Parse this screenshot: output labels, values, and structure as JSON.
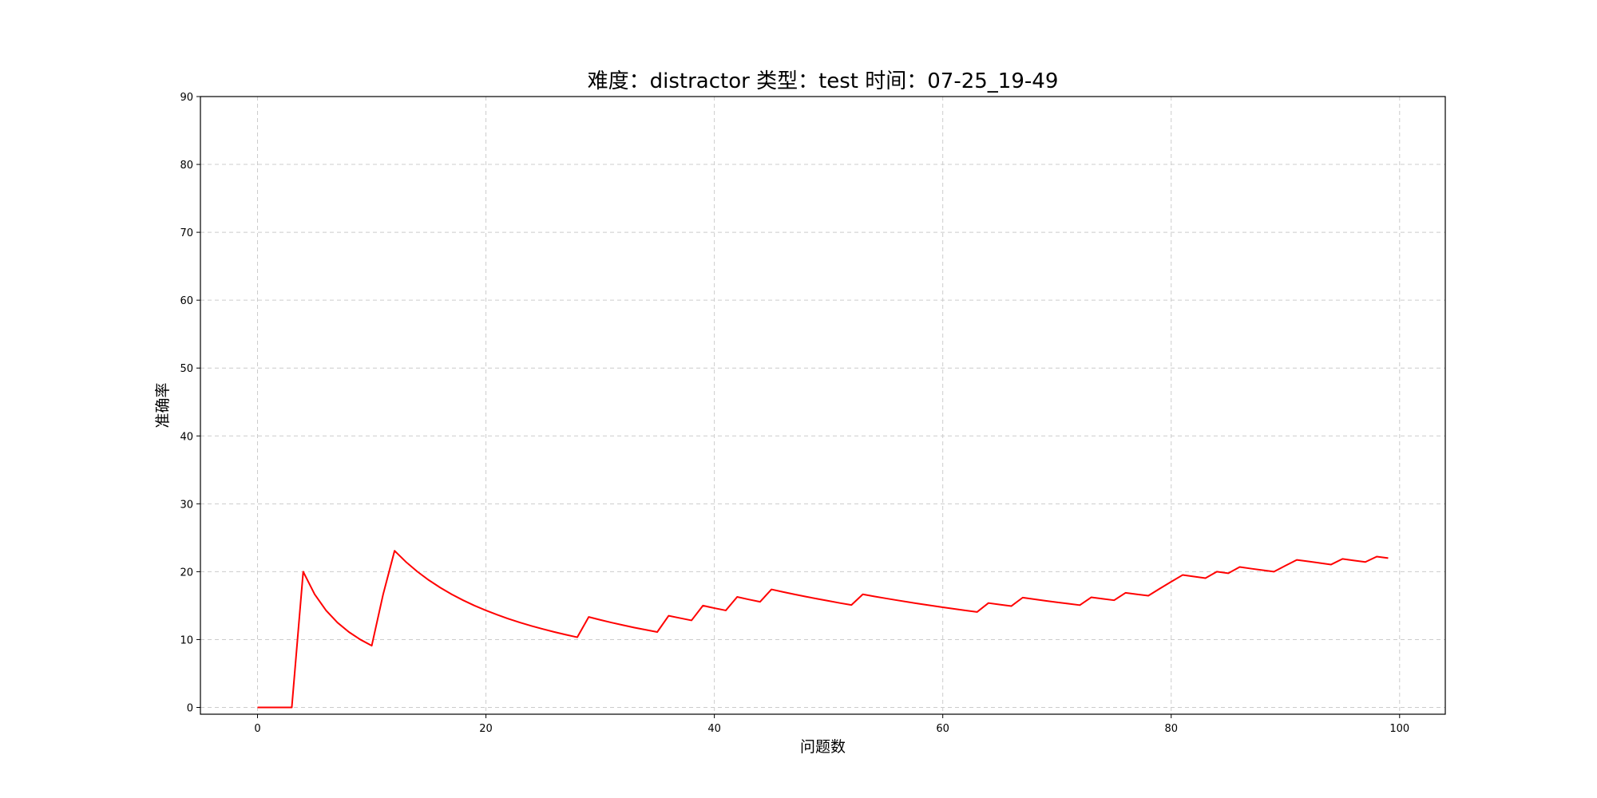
{
  "chart_data": {
    "type": "line",
    "title": "难度：distractor 类型：test 时间：07-25_19-49",
    "xlabel": "问题数",
    "ylabel": "准确率",
    "xlim": [
      -5,
      104
    ],
    "ylim": [
      -1,
      90
    ],
    "xticks": [
      0,
      20,
      40,
      60,
      80,
      100
    ],
    "yticks": [
      0,
      10,
      20,
      30,
      40,
      50,
      60,
      70,
      80,
      90
    ],
    "grid": true,
    "grid_style": "dashed",
    "series": [
      {
        "color": "#ff0000",
        "x": [
          0,
          1,
          2,
          3,
          4,
          5,
          6,
          7,
          8,
          9,
          10,
          11,
          12,
          13,
          14,
          15,
          16,
          17,
          18,
          19,
          20,
          21,
          22,
          23,
          24,
          25,
          26,
          27,
          28,
          29,
          30,
          31,
          32,
          33,
          34,
          35,
          36,
          37,
          38,
          39,
          40,
          41,
          42,
          43,
          44,
          45,
          46,
          47,
          48,
          49,
          50,
          51,
          52,
          53,
          54,
          55,
          56,
          57,
          58,
          59,
          60,
          61,
          62,
          63,
          64,
          65,
          66,
          67,
          68,
          69,
          70,
          71,
          72,
          73,
          74,
          75,
          76,
          77,
          78,
          79,
          80,
          81,
          82,
          83,
          84,
          85,
          86,
          87,
          88,
          89,
          90,
          91,
          92,
          93,
          94,
          95,
          96,
          97,
          98,
          99
        ],
        "y": [
          0,
          0,
          0,
          0,
          20,
          16.67,
          14.29,
          12.5,
          11.11,
          10,
          9.09,
          16.67,
          23.08,
          21.43,
          20,
          18.75,
          17.65,
          16.67,
          15.79,
          15,
          14.29,
          13.64,
          13.04,
          12.5,
          12,
          11.54,
          11.11,
          10.71,
          10.34,
          13.33,
          12.9,
          12.5,
          12.12,
          11.76,
          11.43,
          11.11,
          13.51,
          13.16,
          12.82,
          15,
          14.63,
          14.29,
          16.28,
          15.91,
          15.56,
          17.39,
          17.02,
          16.67,
          16.33,
          16,
          15.69,
          15.38,
          15.09,
          16.67,
          16.36,
          16.07,
          15.79,
          15.52,
          15.25,
          15,
          14.75,
          14.52,
          14.29,
          14.06,
          15.38,
          15.15,
          14.93,
          16.18,
          15.94,
          15.71,
          15.49,
          15.28,
          15.07,
          16.22,
          16,
          15.79,
          16.88,
          16.67,
          16.46,
          17.5,
          18.52,
          19.51,
          19.28,
          19.05,
          20,
          19.77,
          20.69,
          20.45,
          20.22,
          20,
          20.88,
          21.74,
          21.51,
          21.28,
          21.05,
          21.88,
          21.65,
          21.43,
          22.22,
          22
        ]
      }
    ]
  }
}
